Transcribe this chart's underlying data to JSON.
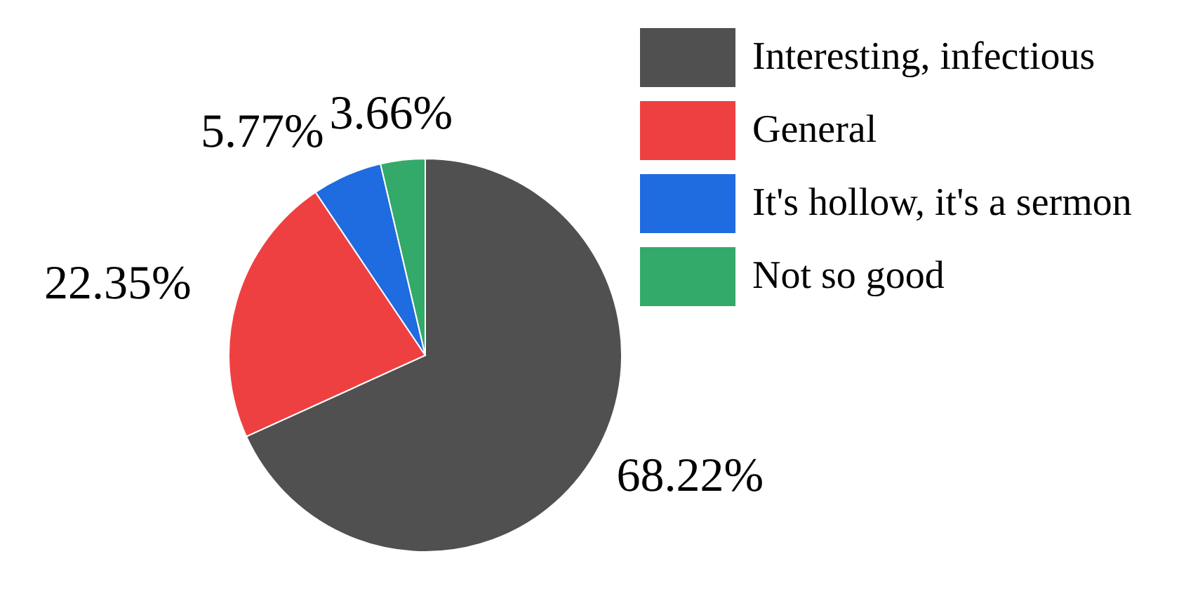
{
  "chart_data": {
    "type": "pie",
    "categories": [
      "Interesting, infectious",
      "General",
      "It's hollow, it's a sermon",
      "Not so good"
    ],
    "values": [
      68.22,
      22.35,
      5.77,
      3.66
    ],
    "value_labels": [
      "68.22%",
      "22.35%",
      "5.77%",
      "3.66%"
    ],
    "colors": [
      "#505050",
      "#ef4041",
      "#1f6be0",
      "#33a96a"
    ],
    "legend": "top right"
  }
}
